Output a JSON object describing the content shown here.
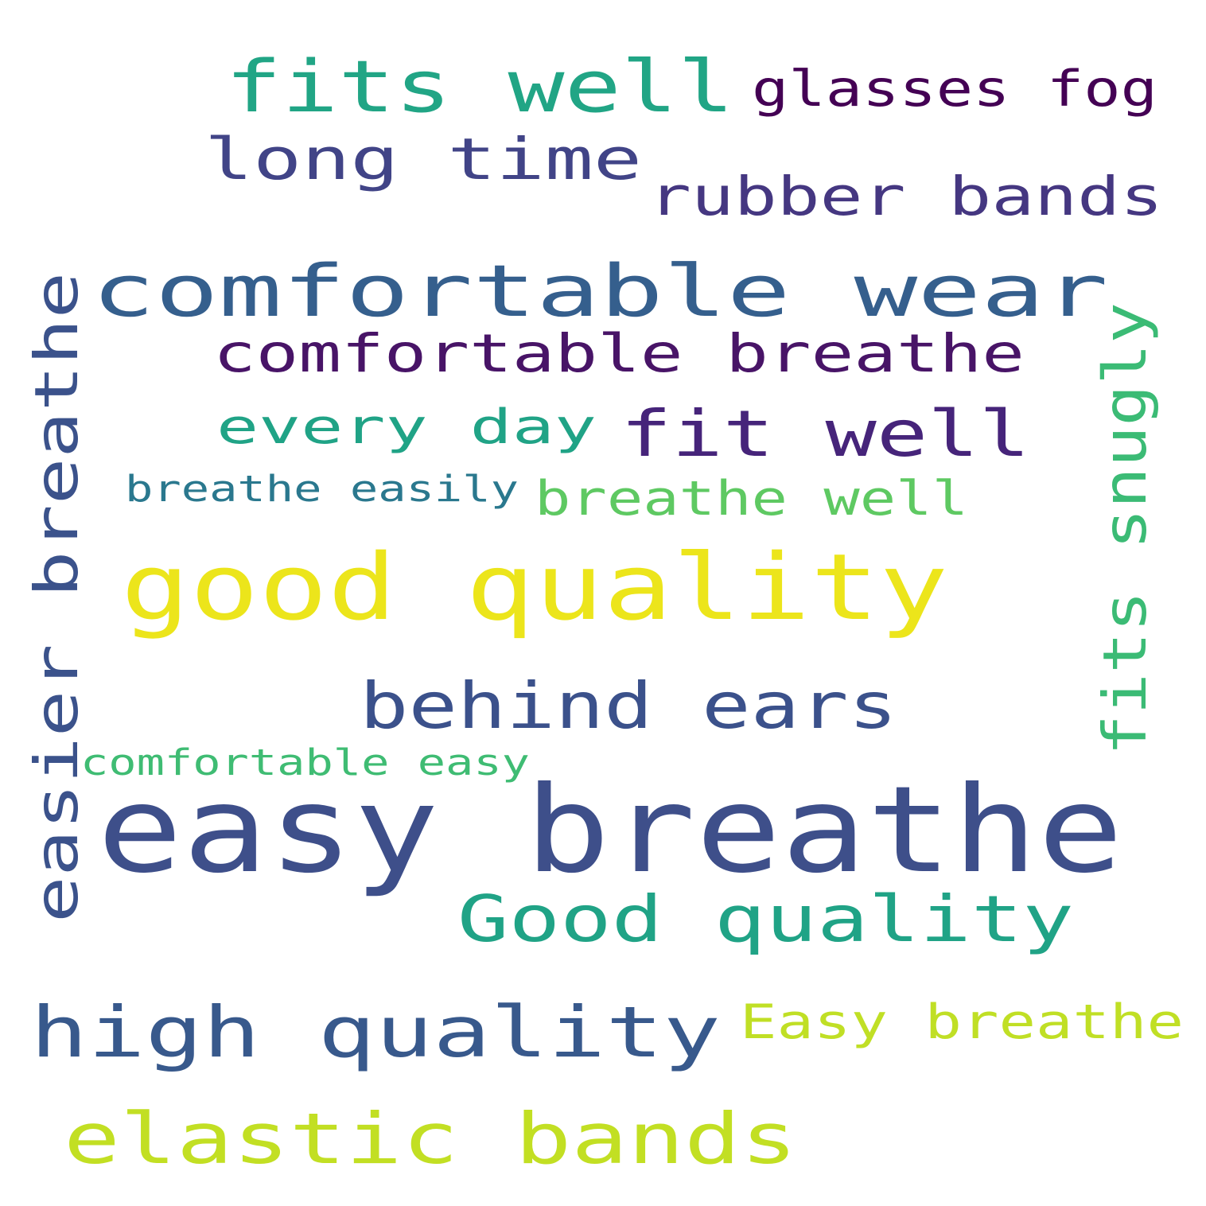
{
  "words": [
    {
      "id": "easy-breathe",
      "text": "easy breathe",
      "color": "#3e4f8a"
    },
    {
      "id": "good-quality",
      "text": "good quality",
      "color": "#ece51b"
    },
    {
      "id": "comfortable-wear",
      "text": "comfortable wear",
      "color": "#355f8d"
    },
    {
      "id": "fits-well",
      "text": "fits well",
      "color": "#21a585"
    },
    {
      "id": "glasses-fog",
      "text": "glasses fog",
      "color": "#440154"
    },
    {
      "id": "long-time",
      "text": "long time",
      "color": "#414487"
    },
    {
      "id": "rubber-bands",
      "text": "rubber bands",
      "color": "#453781"
    },
    {
      "id": "comfortable-breathe",
      "text": "comfortable breathe",
      "color": "#481467"
    },
    {
      "id": "every-day",
      "text": "every day",
      "color": "#20a386"
    },
    {
      "id": "fit-well",
      "text": "fit well",
      "color": "#46247a"
    },
    {
      "id": "breathe-easily",
      "text": "breathe easily",
      "color": "#2a788e"
    },
    {
      "id": "breathe-well",
      "text": "breathe well",
      "color": "#5ec962"
    },
    {
      "id": "easier-breathe",
      "text": "easier breathe",
      "color": "#3b528b"
    },
    {
      "id": "fits-snugly",
      "text": "fits snugly",
      "color": "#3bbb75"
    },
    {
      "id": "behind-ears",
      "text": "behind ears",
      "color": "#3b518b"
    },
    {
      "id": "comfortable-easy",
      "text": "comfortable easy",
      "color": "#3fbc73"
    },
    {
      "id": "good-quality-capital",
      "text": "Good quality",
      "color": "#20a386"
    },
    {
      "id": "high-quality",
      "text": "high quality",
      "color": "#38598c"
    },
    {
      "id": "easy-breathe-capital",
      "text": "Easy breathe",
      "color": "#c0df25"
    },
    {
      "id": "elastic-bands",
      "text": "elastic bands",
      "color": "#c2df23"
    }
  ]
}
